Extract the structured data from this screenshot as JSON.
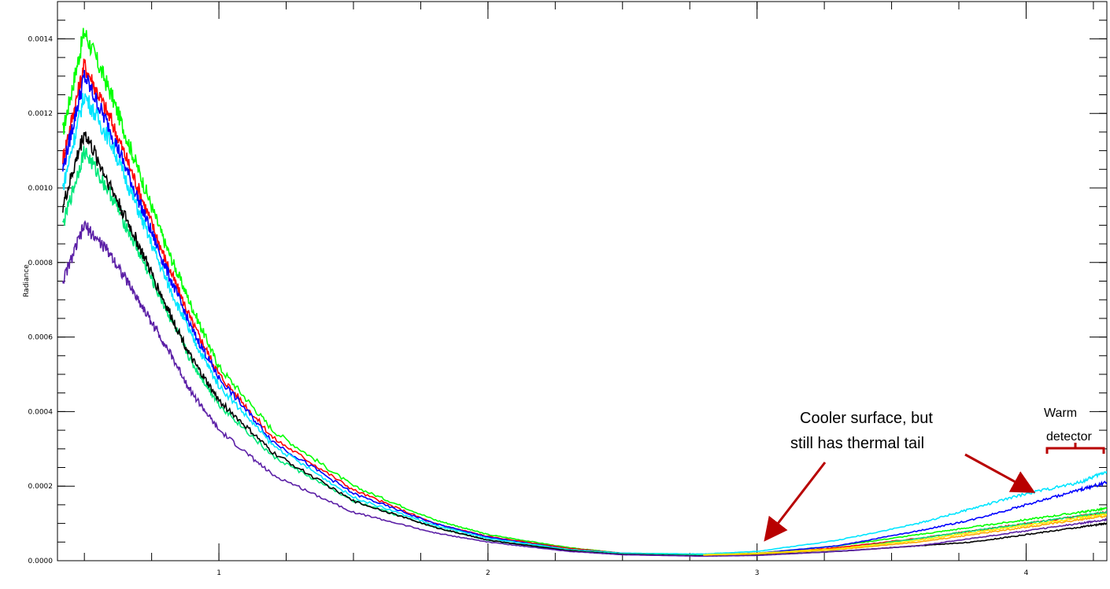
{
  "chart_data": {
    "type": "line",
    "title": "",
    "xlabel": "",
    "ylabel": "Radiance",
    "xlim": [
      0.4,
      4.3
    ],
    "ylim": [
      0.0,
      0.0015
    ],
    "x_ticks": [
      1,
      2,
      3,
      4
    ],
    "y_ticks": [
      0.0,
      0.0002,
      0.0004,
      0.0006,
      0.0008,
      0.001,
      0.0012,
      0.0014
    ],
    "y_tick_labels": [
      "0.0000",
      "0.0002",
      "0.0004",
      "0.0006",
      "0.0008",
      "0.0010",
      "0.0012",
      "0.0014"
    ],
    "grid": false,
    "legend": "none",
    "series": [
      {
        "color": "#00ff00",
        "x": [
          0.42,
          0.5,
          0.6,
          0.7,
          0.8,
          0.9,
          1.0,
          1.2,
          1.5,
          1.8,
          2.0,
          2.3,
          2.5,
          2.8,
          3.0,
          3.3,
          3.6,
          3.8,
          4.0,
          4.2,
          4.3
        ],
        "y": [
          0.00115,
          0.00142,
          0.00125,
          0.00105,
          0.00085,
          0.00068,
          0.00052,
          0.00035,
          0.0002,
          0.00011,
          7e-05,
          3.5e-05,
          2e-05,
          1.7e-05,
          2e-05,
          4e-05,
          7e-05,
          9e-05,
          0.00011,
          0.00013,
          0.00014
        ]
      },
      {
        "color": "#ff0000",
        "x": [
          0.42,
          0.5,
          0.6,
          0.7,
          0.8,
          0.9,
          1.0,
          1.2,
          1.5,
          1.8,
          2.0,
          2.3,
          2.5,
          2.8,
          3.0,
          3.3,
          3.6,
          3.8,
          4.0,
          4.2,
          4.3
        ],
        "y": [
          0.00108,
          0.00133,
          0.00118,
          0.001,
          0.00081,
          0.00064,
          0.0005,
          0.00033,
          0.00019,
          0.0001,
          6.5e-05,
          3.3e-05,
          2e-05,
          1.5e-05,
          1.8e-05,
          3.5e-05,
          6e-05,
          8e-05,
          0.0001,
          0.00012,
          0.00013
        ]
      },
      {
        "color": "#0000ff",
        "x": [
          0.42,
          0.5,
          0.6,
          0.7,
          0.8,
          0.9,
          1.0,
          1.2,
          1.5,
          1.8,
          2.0,
          2.3,
          2.5,
          2.8,
          3.0,
          3.3,
          3.6,
          3.8,
          4.0,
          4.2,
          4.3
        ],
        "y": [
          0.00105,
          0.0013,
          0.00115,
          0.00097,
          0.00079,
          0.00062,
          0.00049,
          0.00032,
          0.00018,
          0.0001,
          6.3e-05,
          3e-05,
          2e-05,
          1.6e-05,
          2e-05,
          4e-05,
          8e-05,
          0.00011,
          0.00015,
          0.00019,
          0.00021
        ]
      },
      {
        "color": "#00e5ff",
        "x": [
          0.42,
          0.5,
          0.6,
          0.7,
          0.8,
          0.9,
          1.0,
          1.2,
          1.5,
          1.8,
          2.0,
          2.3,
          2.5,
          2.8,
          3.0,
          3.3,
          3.6,
          3.8,
          4.0,
          4.2,
          4.3
        ],
        "y": [
          0.001,
          0.00125,
          0.00112,
          0.00094,
          0.00076,
          0.0006,
          0.00047,
          0.00031,
          0.00017,
          9.5e-05,
          6e-05,
          3e-05,
          2e-05,
          1.8e-05,
          2.5e-05,
          5.5e-05,
          0.0001,
          0.00014,
          0.00018,
          0.00021,
          0.00024
        ]
      },
      {
        "color": "#00e87a",
        "x": [
          0.42,
          0.5,
          0.6,
          0.7,
          0.8,
          0.9,
          1.0,
          1.2,
          1.5,
          1.8,
          2.0,
          2.3,
          2.5,
          2.8,
          3.0,
          3.3,
          3.6,
          3.8,
          4.0,
          4.2,
          4.3
        ],
        "y": [
          0.0009,
          0.0011,
          0.00098,
          0.00083,
          0.00068,
          0.00053,
          0.00042,
          0.00028,
          0.00016,
          9e-05,
          5.5e-05,
          2.8e-05,
          1.8e-05,
          1.5e-05,
          1.8e-05,
          3e-05,
          6e-05,
          8e-05,
          0.0001,
          0.00012,
          0.00013
        ]
      },
      {
        "color": "#000000",
        "x": [
          0.42,
          0.5,
          0.6,
          0.7,
          0.8,
          0.9,
          1.0,
          1.2,
          1.5,
          1.8,
          2.0,
          2.3,
          2.5,
          2.8,
          3.0,
          3.3,
          3.6,
          3.8,
          4.0,
          4.2,
          4.3
        ],
        "y": [
          0.00095,
          0.00115,
          0.001,
          0.00085,
          0.00069,
          0.00054,
          0.00043,
          0.00029,
          0.00016,
          9e-05,
          5.5e-05,
          2.7e-05,
          1.7e-05,
          1.3e-05,
          1.5e-05,
          2.5e-05,
          4e-05,
          5e-05,
          7e-05,
          9e-05,
          0.0001
        ]
      },
      {
        "color": "#5b1fa6",
        "x": [
          0.42,
          0.5,
          0.6,
          0.7,
          0.8,
          0.9,
          1.0,
          1.2,
          1.5,
          1.8,
          2.0,
          2.3,
          2.5,
          2.8,
          3.0,
          3.3,
          3.6,
          3.8,
          4.0,
          4.2,
          4.3
        ],
        "y": [
          0.00075,
          0.0009,
          0.00082,
          0.0007,
          0.00058,
          0.00045,
          0.00035,
          0.00023,
          0.00013,
          7.5e-05,
          5e-05,
          2.5e-05,
          1.6e-05,
          1.2e-05,
          1.4e-05,
          2.5e-05,
          4e-05,
          6e-05,
          8e-05,
          0.0001,
          0.00011
        ]
      },
      {
        "color": "#ffa500",
        "x": [
          2.8,
          3.0,
          3.3,
          3.6,
          3.8,
          4.0,
          4.2,
          4.3
        ],
        "y": [
          1.5e-05,
          1.8e-05,
          3e-05,
          5e-05,
          7e-05,
          9e-05,
          0.00011,
          0.00012
        ]
      },
      {
        "color": "#ffee00",
        "x": [
          2.8,
          3.0,
          3.3,
          3.6,
          3.8,
          4.0,
          4.2,
          4.3
        ],
        "y": [
          1.6e-05,
          2e-05,
          3.2e-05,
          5.5e-05,
          7.5e-05,
          9.5e-05,
          0.000115,
          0.000125
        ]
      }
    ],
    "annotations": [
      {
        "text_lines": [
          "Cooler surface, but",
          "still has thermal tail"
        ]
      },
      {
        "text_lines": [
          "Warm",
          "detector"
        ]
      }
    ]
  }
}
